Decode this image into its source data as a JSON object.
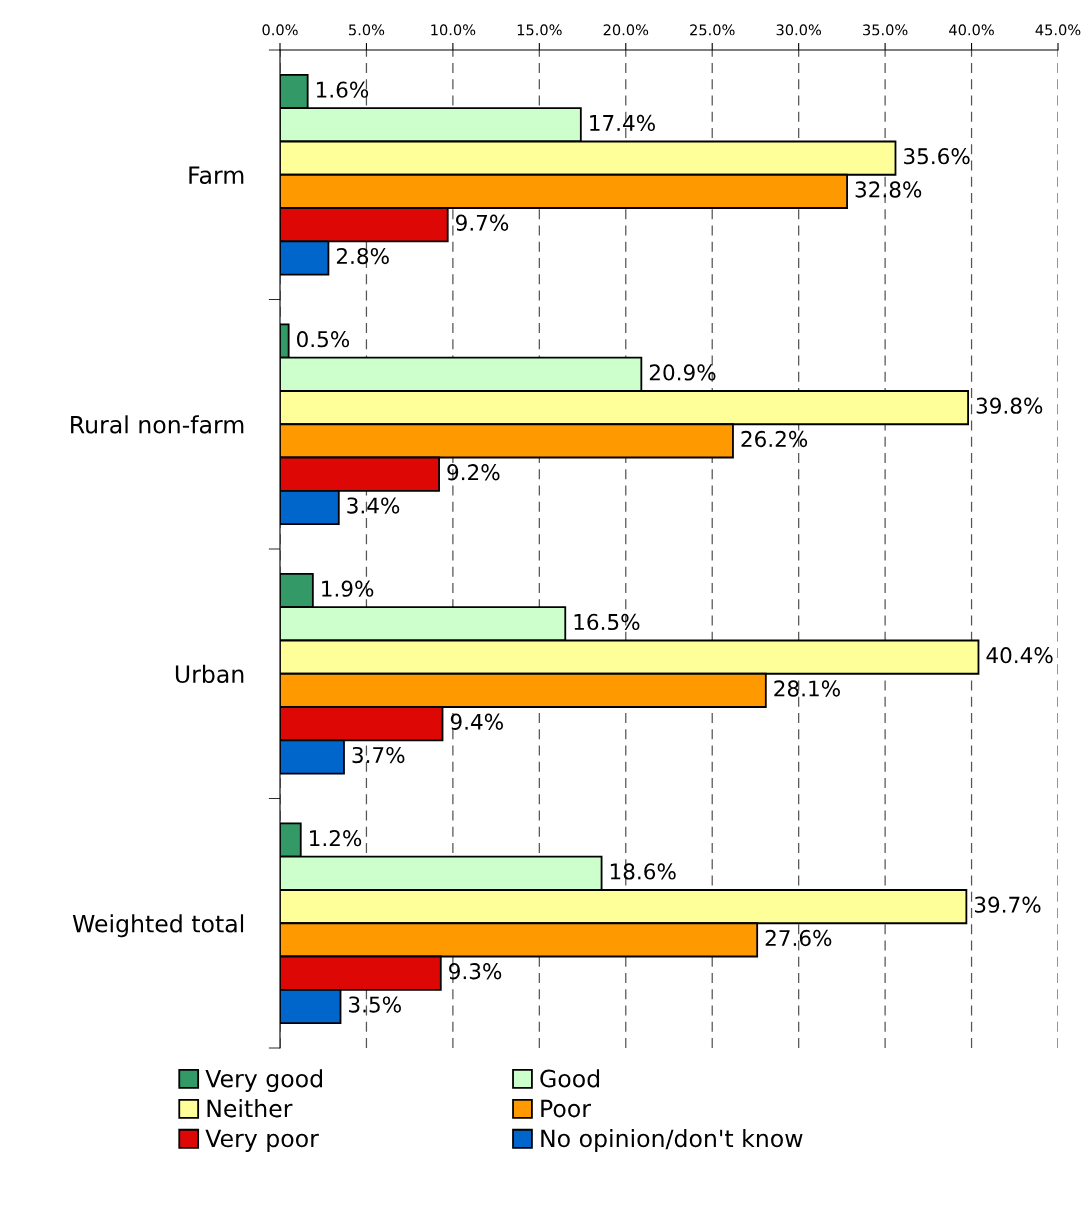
{
  "chart_data": {
    "type": "bar",
    "orientation": "horizontal",
    "categories": [
      "Farm",
      "Rural non-farm",
      "Urban",
      "Weighted total"
    ],
    "series": [
      {
        "name": "Very good",
        "color": "#339966",
        "values": [
          1.6,
          0.5,
          1.9,
          1.2
        ],
        "value_labels": [
          "1.6%",
          "0.5%",
          "1.9%",
          "1.2%"
        ]
      },
      {
        "name": "Good",
        "color": "#ccffcc",
        "values": [
          17.4,
          20.9,
          16.5,
          18.6
        ],
        "value_labels": [
          "17.4%",
          "20.9%",
          "16.5%",
          "18.6%"
        ]
      },
      {
        "name": "Neither",
        "color": "#ffff99",
        "values": [
          35.6,
          39.8,
          40.4,
          39.7
        ],
        "value_labels": [
          "35.6%",
          "39.8%",
          "40.4%",
          "39.7%"
        ]
      },
      {
        "name": "Poor",
        "color": "#ff9900",
        "values": [
          32.8,
          26.2,
          28.1,
          27.6
        ],
        "value_labels": [
          "32.8%",
          "26.2%",
          "28.1%",
          "27.6%"
        ]
      },
      {
        "name": "Very poor",
        "color": "#dd0806",
        "values": [
          9.7,
          9.2,
          9.4,
          9.3
        ],
        "value_labels": [
          "9.7%",
          "9.2%",
          "9.4%",
          "9.3%"
        ]
      },
      {
        "name": "No opinion/don't know",
        "color": "#0066cc",
        "values": [
          2.8,
          3.4,
          3.7,
          3.5
        ],
        "value_labels": [
          "2.8%",
          "3.4%",
          "3.7%",
          "3.5%"
        ]
      }
    ],
    "xlim": [
      0,
      45
    ],
    "xticks": [
      {
        "value": 0,
        "label": "0.0%"
      },
      {
        "value": 5,
        "label": "5.0%"
      },
      {
        "value": 10,
        "label": "10.0%"
      },
      {
        "value": 15,
        "label": "15.0%"
      },
      {
        "value": 20,
        "label": "20.0%"
      },
      {
        "value": 25,
        "label": "25.0%"
      },
      {
        "value": 30,
        "label": "30.0%"
      },
      {
        "value": 35,
        "label": "35.0%"
      },
      {
        "value": 40,
        "label": "40.0%"
      },
      {
        "value": 45,
        "label": "45.0%"
      }
    ],
    "grid": "x",
    "legend": "bottom"
  }
}
